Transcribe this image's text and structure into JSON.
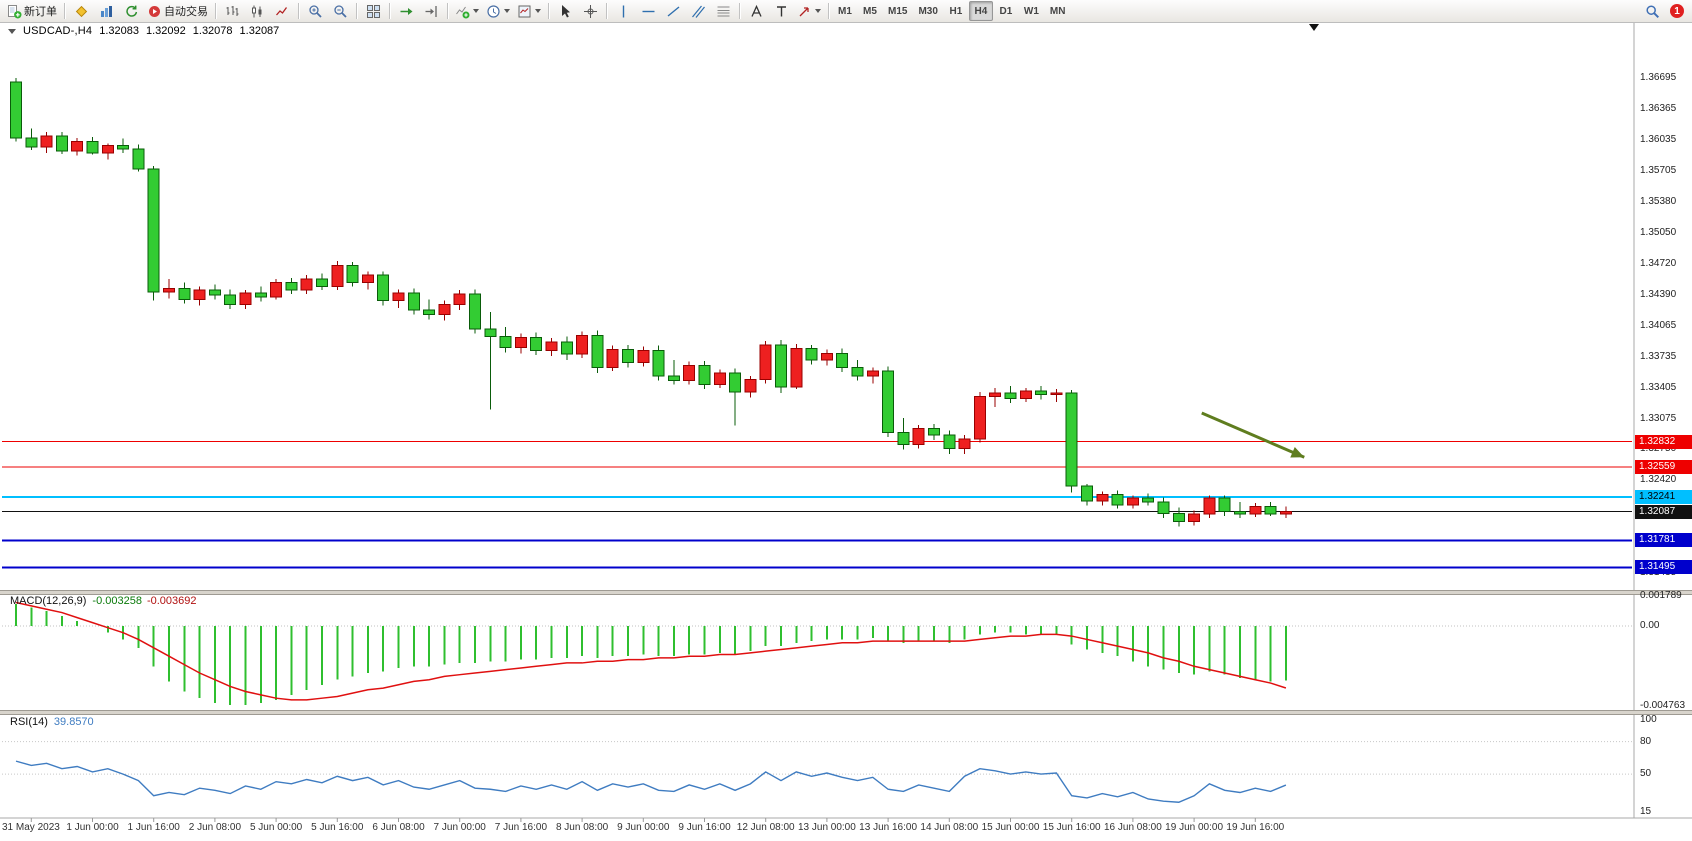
{
  "window": {
    "symbol": "USDCAD-,H4",
    "open": "1.32083",
    "high": "1.32092",
    "low": "1.32078",
    "close": "1.32087"
  },
  "toolbar": {
    "groups": [
      {
        "items": [
          {
            "name": "new-order-button",
            "icon": "new-order-icon",
            "label": "新订单"
          }
        ]
      },
      {
        "items": [
          {
            "name": "metaeditor-button",
            "icon": "metaeditor-icon"
          },
          {
            "name": "market-button",
            "icon": "market-icon"
          },
          {
            "name": "refresh-button",
            "icon": "refresh-icon"
          },
          {
            "name": "autotrading-button",
            "icon": "autotrading-icon",
            "label": "自动交易"
          }
        ]
      },
      {
        "items": [
          {
            "name": "bar-chart-button",
            "icon": "bar-chart-icon"
          },
          {
            "name": "candlestick-chart-button",
            "icon": "candlestick-icon"
          },
          {
            "name": "line-chart-button",
            "icon": "line-chart-icon"
          }
        ]
      },
      {
        "items": [
          {
            "name": "zoom-in-button",
            "icon": "zoom-in-icon"
          },
          {
            "name": "zoom-out-button",
            "icon": "zoom-out-icon"
          }
        ]
      },
      {
        "items": [
          {
            "name": "tile-windows-button",
            "icon": "tile-windows-icon"
          }
        ]
      },
      {
        "items": [
          {
            "name": "auto-scroll-button",
            "icon": "auto-scroll-icon"
          },
          {
            "name": "chart-shift-button",
            "icon": "chart-shift-icon"
          }
        ]
      },
      {
        "items": [
          {
            "name": "indicators-dropdown",
            "icon": "indicators-icon",
            "caret": true
          },
          {
            "name": "periods-dropdown",
            "icon": "clock-icon",
            "caret": true
          },
          {
            "name": "templates-dropdown",
            "icon": "template-icon",
            "caret": true
          }
        ]
      },
      {
        "items": [
          {
            "name": "cursor-button",
            "icon": "cursor-icon"
          },
          {
            "name": "crosshair-button",
            "icon": "crosshair-icon"
          }
        ]
      },
      {
        "items": [
          {
            "name": "vertical-line-button",
            "icon": "vertical-line-icon"
          },
          {
            "name": "horizontal-line-button",
            "icon": "horizontal-line-icon"
          },
          {
            "name": "trendline-button",
            "icon": "trendline-icon"
          },
          {
            "name": "channel-button",
            "icon": "channel-icon"
          },
          {
            "name": "fibonacci-button",
            "icon": "fibonacci-icon"
          }
        ]
      },
      {
        "items": [
          {
            "name": "text-button",
            "icon": "text-icon"
          },
          {
            "name": "text-label-button",
            "icon": "text-label-icon"
          },
          {
            "name": "arrows-dropdown",
            "icon": "arrow-icon",
            "caret": true
          }
        ]
      },
      {
        "items": [
          {
            "name": "tf-m1-button",
            "label": "M1",
            "tf": true
          },
          {
            "name": "tf-m5-button",
            "label": "M5",
            "tf": true
          },
          {
            "name": "tf-m15-button",
            "label": "M15",
            "tf": true
          },
          {
            "name": "tf-m30-button",
            "label": "M30",
            "tf": true
          },
          {
            "name": "tf-h1-button",
            "label": "H1",
            "tf": true
          },
          {
            "name": "tf-h4-button",
            "label": "H4",
            "tf": true,
            "active": true
          },
          {
            "name": "tf-d1-button",
            "label": "D1",
            "tf": true
          },
          {
            "name": "tf-w1-button",
            "label": "W1",
            "tf": true
          },
          {
            "name": "tf-mn-button",
            "label": "MN",
            "tf": true
          }
        ]
      }
    ],
    "right": {
      "search": {
        "name": "search-button",
        "icon": "search-icon"
      },
      "notification_count": "1"
    }
  },
  "chart_data": {
    "type": "candlestick",
    "symbol": "USDCAD-",
    "timeframe": "H4",
    "candle_color_convention": "red = up, green = down",
    "candles_ohlc": [
      [
        1.3665,
        1.36695,
        1.3602,
        1.3606
      ],
      [
        1.3606,
        1.3616,
        1.3593,
        1.3596
      ],
      [
        1.3596,
        1.3612,
        1.359,
        1.3608
      ],
      [
        1.3608,
        1.3612,
        1.3589,
        1.3592
      ],
      [
        1.3592,
        1.3606,
        1.3587,
        1.3602
      ],
      [
        1.3602,
        1.3607,
        1.3588,
        1.359
      ],
      [
        1.359,
        1.36,
        1.3583,
        1.3598
      ],
      [
        1.3598,
        1.3605,
        1.359,
        1.3594
      ],
      [
        1.3594,
        1.3599,
        1.357,
        1.3573
      ],
      [
        1.3573,
        1.3576,
        1.3433,
        1.3442
      ],
      [
        1.3442,
        1.3456,
        1.3435,
        1.3446
      ],
      [
        1.3446,
        1.3452,
        1.343,
        1.3434
      ],
      [
        1.3434,
        1.3448,
        1.3428,
        1.3444
      ],
      [
        1.3444,
        1.345,
        1.3434,
        1.3439
      ],
      [
        1.3439,
        1.3445,
        1.3424,
        1.3429
      ],
      [
        1.3429,
        1.3444,
        1.3424,
        1.3441
      ],
      [
        1.3441,
        1.3448,
        1.3432,
        1.3437
      ],
      [
        1.3437,
        1.3456,
        1.3434,
        1.3452
      ],
      [
        1.3452,
        1.3457,
        1.344,
        1.3444
      ],
      [
        1.3444,
        1.346,
        1.344,
        1.3456
      ],
      [
        1.3456,
        1.3462,
        1.3444,
        1.3448
      ],
      [
        1.3448,
        1.3475,
        1.3444,
        1.347
      ],
      [
        1.347,
        1.3474,
        1.3448,
        1.3452
      ],
      [
        1.3452,
        1.3464,
        1.3445,
        1.346
      ],
      [
        1.346,
        1.3464,
        1.3428,
        1.3433
      ],
      [
        1.3433,
        1.3445,
        1.3425,
        1.3441
      ],
      [
        1.3441,
        1.3446,
        1.3418,
        1.3423
      ],
      [
        1.3423,
        1.3434,
        1.3413,
        1.3418
      ],
      [
        1.3418,
        1.3433,
        1.3412,
        1.3429
      ],
      [
        1.3429,
        1.3444,
        1.3423,
        1.344
      ],
      [
        1.344,
        1.3445,
        1.3398,
        1.3403
      ],
      [
        1.3403,
        1.3421,
        1.3317,
        1.3395
      ],
      [
        1.3395,
        1.3405,
        1.3378,
        1.3383
      ],
      [
        1.3383,
        1.3398,
        1.3377,
        1.3394
      ],
      [
        1.3394,
        1.3399,
        1.3375,
        1.338
      ],
      [
        1.338,
        1.3393,
        1.3374,
        1.3389
      ],
      [
        1.3389,
        1.3395,
        1.337,
        1.3376
      ],
      [
        1.3376,
        1.34,
        1.3372,
        1.3396
      ],
      [
        1.3396,
        1.3401,
        1.3356,
        1.3362
      ],
      [
        1.3362,
        1.3385,
        1.3358,
        1.3381
      ],
      [
        1.3381,
        1.3386,
        1.3362,
        1.3367
      ],
      [
        1.3367,
        1.3384,
        1.3363,
        1.338
      ],
      [
        1.338,
        1.3385,
        1.3348,
        1.3353
      ],
      [
        1.3353,
        1.337,
        1.3344,
        1.3348
      ],
      [
        1.3348,
        1.3368,
        1.3344,
        1.3364
      ],
      [
        1.3364,
        1.3369,
        1.3339,
        1.3344
      ],
      [
        1.3344,
        1.336,
        1.334,
        1.3356
      ],
      [
        1.3356,
        1.3361,
        1.33,
        1.3336
      ],
      [
        1.3336,
        1.3353,
        1.333,
        1.3349
      ],
      [
        1.3349,
        1.339,
        1.3345,
        1.3386
      ],
      [
        1.3386,
        1.3391,
        1.3335,
        1.3341
      ],
      [
        1.3341,
        1.3387,
        1.3339,
        1.3382
      ],
      [
        1.3382,
        1.3386,
        1.3365,
        1.337
      ],
      [
        1.337,
        1.3381,
        1.3364,
        1.3377
      ],
      [
        1.3377,
        1.3382,
        1.3357,
        1.3362
      ],
      [
        1.3362,
        1.337,
        1.3348,
        1.3353
      ],
      [
        1.3353,
        1.3362,
        1.3345,
        1.3358
      ],
      [
        1.3358,
        1.3363,
        1.3288,
        1.3293
      ],
      [
        1.3293,
        1.3308,
        1.3275,
        1.328
      ],
      [
        1.328,
        1.3301,
        1.3276,
        1.3297
      ],
      [
        1.3297,
        1.3302,
        1.3285,
        1.329
      ],
      [
        1.329,
        1.3295,
        1.327,
        1.3276
      ],
      [
        1.3276,
        1.329,
        1.327,
        1.3286
      ],
      [
        1.3286,
        1.3336,
        1.3282,
        1.3331
      ],
      [
        1.3331,
        1.334,
        1.332,
        1.3335
      ],
      [
        1.3335,
        1.3342,
        1.3324,
        1.3329
      ],
      [
        1.3329,
        1.334,
        1.3325,
        1.3337
      ],
      [
        1.3337,
        1.3342,
        1.3328,
        1.3333
      ],
      [
        1.3333,
        1.3339,
        1.3325,
        1.3335
      ],
      [
        1.3335,
        1.3338,
        1.3229,
        1.3236
      ],
      [
        1.3236,
        1.3238,
        1.3215,
        1.322
      ],
      [
        1.322,
        1.323,
        1.3215,
        1.3227
      ],
      [
        1.3227,
        1.3231,
        1.3212,
        1.3216
      ],
      [
        1.3216,
        1.3226,
        1.3212,
        1.3223
      ],
      [
        1.3223,
        1.3228,
        1.3215,
        1.3219
      ],
      [
        1.3219,
        1.3224,
        1.3202,
        1.3207
      ],
      [
        1.3207,
        1.3213,
        1.3193,
        1.3198
      ],
      [
        1.3198,
        1.321,
        1.3194,
        1.3206
      ],
      [
        1.3206,
        1.3226,
        1.3202,
        1.3223
      ],
      [
        1.3223,
        1.3226,
        1.3204,
        1.3209
      ],
      [
        1.3209,
        1.3219,
        1.3202,
        1.3206
      ],
      [
        1.3206,
        1.3218,
        1.3203,
        1.3214
      ],
      [
        1.3214,
        1.3219,
        1.3204,
        1.3206
      ],
      [
        1.3206,
        1.3214,
        1.3202,
        1.32087
      ]
    ],
    "time_axis": {
      "first_index": 1,
      "step": 4,
      "labels": [
        "31 May 2023",
        "1 Jun 00:00",
        "1 Jun 16:00",
        "2 Jun 08:00",
        "5 Jun 00:00",
        "5 Jun 16:00",
        "6 Jun 08:00",
        "7 Jun 00:00",
        "7 Jun 16:00",
        "8 Jun 08:00",
        "9 Jun 00:00",
        "9 Jun 16:00",
        "12 Jun 08:00",
        "13 Jun 00:00",
        "13 Jun 16:00",
        "14 Jun 08:00",
        "15 Jun 00:00",
        "15 Jun 16:00",
        "16 Jun 08:00",
        "19 Jun 00:00",
        "19 Jun 16:00"
      ]
    },
    "price_axis_ticks": [
      "1.36695",
      "1.36365",
      "1.36035",
      "1.35705",
      "1.35380",
      "1.35050",
      "1.34720",
      "1.34390",
      "1.34065",
      "1.33735",
      "1.33405",
      "1.33075",
      "1.32750",
      "1.32420",
      "1.32095",
      "1.31765",
      "1.31435"
    ],
    "horizontal_lines": [
      {
        "price": 1.32832,
        "badge": "1.32832",
        "color": "#ee0000",
        "width": 1,
        "role": "resistance-line",
        "text_color": "#fff"
      },
      {
        "price": 1.32559,
        "badge": "1.32559",
        "color": "#ee0000",
        "width": 1,
        "role": "resistance-line",
        "text_color": "#fff"
      },
      {
        "price": 1.32241,
        "badge": "1.32241",
        "color": "#00bfff",
        "width": 2,
        "role": "pivot-line",
        "text_color": "#000"
      },
      {
        "price": 1.32087,
        "badge": "1.32087",
        "color": "#111111",
        "width": 1,
        "role": "current-price-line",
        "text_color": "#fff"
      },
      {
        "price": 1.31781,
        "badge": "1.31781",
        "color": "#0000cc",
        "width": 2,
        "role": "support-line",
        "text_color": "#fff"
      },
      {
        "price": 1.31495,
        "badge": "1.31495",
        "color": "#0000cc",
        "width": 2,
        "role": "support-line",
        "text_color": "#fff"
      }
    ],
    "last_price": "1.32087",
    "annotations": [
      {
        "type": "arrow",
        "from": {
          "bar": 77.5,
          "price": 1.33135
        },
        "to": {
          "bar": 84.2,
          "price": 1.32665
        },
        "color": "#5f7d1f"
      }
    ],
    "indicators": [
      {
        "name": "MACD",
        "params": "12,26,9",
        "label": "MACD(12,26,9)",
        "value_main": "-0.003258",
        "value_signal": "-0.003692",
        "axis_labels": [
          "0.001789",
          "0.00",
          "-0.004763"
        ],
        "histogram": [
          0.0013,
          0.0011,
          0.0009,
          0.0006,
          0.0003,
          0.0,
          -0.0004,
          -0.0008,
          -0.0013,
          -0.0024,
          -0.0033,
          -0.0039,
          -0.0043,
          -0.0046,
          -0.0047,
          -0.0047,
          -0.0046,
          -0.0044,
          -0.0041,
          -0.0038,
          -0.0035,
          -0.0032,
          -0.003,
          -0.0028,
          -0.0027,
          -0.0025,
          -0.0024,
          -0.0024,
          -0.0023,
          -0.0022,
          -0.0022,
          -0.0021,
          -0.0021,
          -0.002,
          -0.002,
          -0.0019,
          -0.0019,
          -0.0018,
          -0.0019,
          -0.0018,
          -0.0018,
          -0.0017,
          -0.0018,
          -0.0018,
          -0.0017,
          -0.0017,
          -0.0016,
          -0.0017,
          -0.0015,
          -0.0012,
          -0.0012,
          -0.001,
          -0.0009,
          -0.0008,
          -0.0008,
          -0.0008,
          -0.0007,
          -0.0009,
          -0.001,
          -0.0009,
          -0.0009,
          -0.001,
          -0.0008,
          -0.0005,
          -0.0004,
          -0.0004,
          -0.0005,
          -0.0005,
          -0.0005,
          -0.0011,
          -0.0014,
          -0.0016,
          -0.0018,
          -0.0021,
          -0.0024,
          -0.0026,
          -0.0028,
          -0.0029,
          -0.0027,
          -0.0029,
          -0.0031,
          -0.0032,
          -0.0033,
          -0.003258
        ],
        "signal": [
          0.0014,
          0.0012,
          0.001,
          0.0008,
          0.0005,
          0.0002,
          -0.0001,
          -0.0004,
          -0.0008,
          -0.0013,
          -0.0018,
          -0.0023,
          -0.0028,
          -0.0032,
          -0.0036,
          -0.0039,
          -0.0041,
          -0.0043,
          -0.0044,
          -0.0044,
          -0.0043,
          -0.0042,
          -0.004,
          -0.0038,
          -0.0037,
          -0.0035,
          -0.0033,
          -0.0032,
          -0.003,
          -0.0029,
          -0.0028,
          -0.0027,
          -0.0026,
          -0.0025,
          -0.0024,
          -0.0023,
          -0.0022,
          -0.0022,
          -0.0021,
          -0.0021,
          -0.002,
          -0.002,
          -0.0019,
          -0.0019,
          -0.0018,
          -0.0018,
          -0.0017,
          -0.0017,
          -0.0016,
          -0.0015,
          -0.0014,
          -0.0013,
          -0.0012,
          -0.0011,
          -0.001,
          -0.001,
          -0.0009,
          -0.0009,
          -0.0009,
          -0.0009,
          -0.0009,
          -0.0009,
          -0.0009,
          -0.0008,
          -0.0007,
          -0.0006,
          -0.0006,
          -0.0005,
          -0.0005,
          -0.0006,
          -0.0008,
          -0.001,
          -0.0012,
          -0.0014,
          -0.0016,
          -0.0019,
          -0.0021,
          -0.0024,
          -0.0026,
          -0.0028,
          -0.003,
          -0.0032,
          -0.0034,
          -0.003692
        ]
      },
      {
        "name": "RSI",
        "params": "14",
        "label": "RSI(14)",
        "value": "39.8570",
        "axis_labels": [
          "100",
          "80",
          "50",
          "15"
        ],
        "levels": [
          80,
          50
        ],
        "series": [
          62,
          58,
          60,
          55,
          57,
          52,
          55,
          50,
          44,
          30,
          33,
          31,
          37,
          35,
          32,
          39,
          36,
          43,
          41,
          45,
          42,
          48,
          44,
          47,
          40,
          44,
          38,
          36,
          40,
          44,
          37,
          36,
          34,
          39,
          36,
          40,
          36,
          43,
          35,
          41,
          38,
          41,
          35,
          34,
          40,
          36,
          41,
          35,
          41,
          52,
          44,
          52,
          48,
          51,
          47,
          44,
          47,
          36,
          34,
          40,
          37,
          34,
          48,
          55,
          53,
          50,
          52,
          50,
          51,
          30,
          28,
          32,
          29,
          33,
          27,
          25,
          24,
          30,
          41,
          35,
          33,
          37,
          34,
          39.857
        ]
      }
    ],
    "colors": {
      "bull_body": "#ee2020",
      "bull_border": "#990000",
      "bear_body": "#33cc33",
      "bear_border": "#0a5c0a",
      "macd_hist": "#2fbf2f",
      "macd_signal": "#e01010",
      "rsi_line": "#3f7cc1",
      "arrow": "#5f7d1f",
      "axis_line": "#a8a8a8"
    }
  }
}
